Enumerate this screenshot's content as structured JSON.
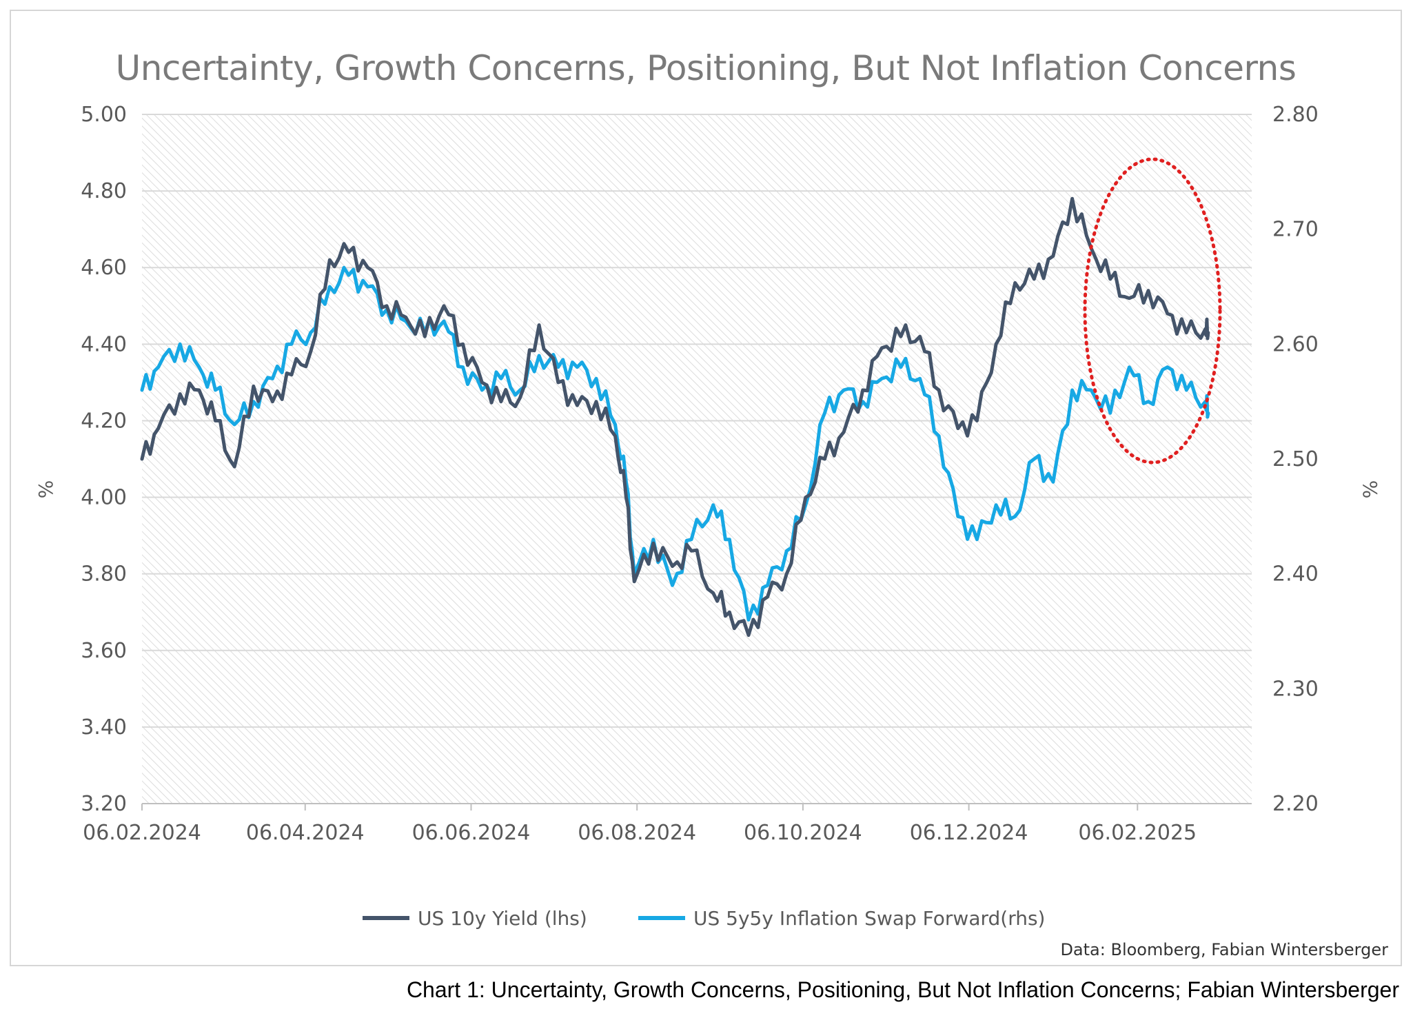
{
  "caption": "Chart 1: Uncertainty, Growth Concerns, Positioning, But Not Inflation Concerns; Fabian Wintersberger",
  "colors": {
    "series1": "#44546a",
    "series2": "#17a8e4",
    "highlight": "#e02020",
    "grid": "#d9d9d9"
  },
  "chart_data": {
    "type": "line",
    "title": "Uncertainty, Growth Concerns, Positioning, But Not Inflation Concerns",
    "source": "Data: Bloomberg, Fabian Wintersberger",
    "ylabel_left": "%",
    "ylabel_right": "%",
    "ylim_left": [
      3.2,
      5.0
    ],
    "ylim_right": [
      2.2,
      2.8
    ],
    "yticks_left": [
      "5.00",
      "4.80",
      "4.60",
      "4.40",
      "4.20",
      "4.00",
      "3.80",
      "3.60",
      "3.40",
      "3.20"
    ],
    "yticks_right": [
      "2.80",
      "2.70",
      "2.60",
      "2.50",
      "2.40",
      "2.30",
      "2.20"
    ],
    "xticks": [
      "06.02.2024",
      "06.04.2024",
      "06.06.2024",
      "06.08.2024",
      "06.10.2024",
      "06.12.2024",
      "06.02.2025"
    ],
    "xlim": [
      "2024-02-06",
      "2025-03-20"
    ],
    "grid": true,
    "legend_position": "bottom",
    "annotation": "dotted red ellipse around January–February 2025",
    "series": [
      {
        "name": "US 10y Yield (lhs)",
        "axis": "left",
        "x": [
          "2024-02-06",
          "2024-02-12",
          "2024-02-20",
          "2024-02-27",
          "2024-03-04",
          "2024-03-11",
          "2024-03-18",
          "2024-03-25",
          "2024-04-01",
          "2024-04-08",
          "2024-04-15",
          "2024-04-22",
          "2024-04-29",
          "2024-05-06",
          "2024-05-13",
          "2024-05-20",
          "2024-05-27",
          "2024-06-03",
          "2024-06-10",
          "2024-06-17",
          "2024-06-24",
          "2024-07-01",
          "2024-07-08",
          "2024-07-15",
          "2024-07-22",
          "2024-07-29",
          "2024-08-02",
          "2024-08-05",
          "2024-08-12",
          "2024-08-19",
          "2024-08-26",
          "2024-09-03",
          "2024-09-09",
          "2024-09-16",
          "2024-09-23",
          "2024-09-30",
          "2024-10-07",
          "2024-10-14",
          "2024-10-21",
          "2024-10-28",
          "2024-11-04",
          "2024-11-11",
          "2024-11-18",
          "2024-11-25",
          "2024-12-02",
          "2024-12-09",
          "2024-12-16",
          "2024-12-23",
          "2024-12-30",
          "2025-01-06",
          "2025-01-13",
          "2025-01-20",
          "2025-01-27",
          "2025-02-03",
          "2025-02-10",
          "2025-02-17",
          "2025-02-24",
          "2025-03-03",
          "2025-03-04"
        ],
        "values": [
          4.1,
          4.18,
          4.27,
          4.28,
          4.2,
          4.08,
          4.29,
          4.25,
          4.32,
          4.38,
          4.62,
          4.64,
          4.6,
          4.5,
          4.47,
          4.42,
          4.5,
          4.4,
          4.3,
          4.25,
          4.26,
          4.45,
          4.3,
          4.24,
          4.25,
          4.16,
          4.0,
          3.78,
          3.88,
          3.82,
          3.86,
          3.75,
          3.7,
          3.64,
          3.74,
          3.8,
          4.0,
          4.1,
          4.17,
          4.28,
          4.39,
          4.42,
          4.42,
          4.28,
          4.18,
          4.2,
          4.4,
          4.56,
          4.57,
          4.63,
          4.78,
          4.65,
          4.57,
          4.52,
          4.54,
          4.48,
          4.43,
          4.44,
          4.43
        ],
        "note": "wiggle approximated"
      },
      {
        "name": "US 5y5y Inflation Swap Forward(rhs)",
        "axis": "right",
        "x": [
          "2024-02-06",
          "2024-02-12",
          "2024-02-20",
          "2024-02-27",
          "2024-03-04",
          "2024-03-11",
          "2024-03-18",
          "2024-03-25",
          "2024-04-01",
          "2024-04-08",
          "2024-04-15",
          "2024-04-22",
          "2024-04-29",
          "2024-05-06",
          "2024-05-13",
          "2024-05-20",
          "2024-05-27",
          "2024-06-03",
          "2024-06-10",
          "2024-06-17",
          "2024-06-24",
          "2024-07-01",
          "2024-07-08",
          "2024-07-15",
          "2024-07-22",
          "2024-07-29",
          "2024-08-02",
          "2024-08-05",
          "2024-08-12",
          "2024-08-19",
          "2024-08-26",
          "2024-09-03",
          "2024-09-09",
          "2024-09-16",
          "2024-09-23",
          "2024-09-30",
          "2024-10-07",
          "2024-10-14",
          "2024-10-21",
          "2024-10-28",
          "2024-11-04",
          "2024-11-11",
          "2024-11-18",
          "2024-11-25",
          "2024-12-02",
          "2024-12-09",
          "2024-12-16",
          "2024-12-23",
          "2024-12-30",
          "2025-01-06",
          "2025-01-13",
          "2025-01-20",
          "2025-01-27",
          "2025-02-03",
          "2025-02-10",
          "2025-02-17",
          "2025-02-24",
          "2025-03-03",
          "2025-03-04"
        ],
        "values": [
          2.56,
          2.58,
          2.6,
          2.58,
          2.56,
          2.53,
          2.55,
          2.57,
          2.6,
          2.61,
          2.65,
          2.66,
          2.65,
          2.63,
          2.62,
          2.61,
          2.62,
          2.58,
          2.56,
          2.57,
          2.56,
          2.59,
          2.58,
          2.58,
          2.57,
          2.53,
          2.48,
          2.4,
          2.43,
          2.39,
          2.43,
          2.46,
          2.43,
          2.36,
          2.39,
          2.42,
          2.46,
          2.54,
          2.56,
          2.55,
          2.57,
          2.58,
          2.57,
          2.52,
          2.45,
          2.43,
          2.46,
          2.45,
          2.5,
          2.48,
          2.56,
          2.56,
          2.54,
          2.58,
          2.55,
          2.58,
          2.56,
          2.55,
          2.54
        ],
        "note": "wiggle approximated"
      }
    ]
  }
}
